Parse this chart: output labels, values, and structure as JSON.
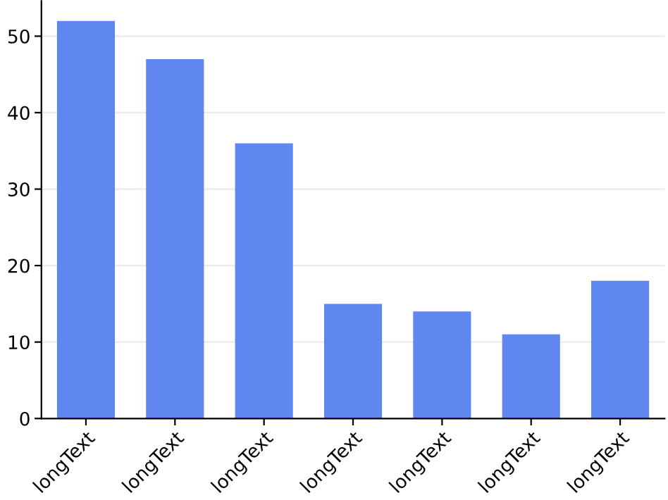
{
  "chart_data": {
    "type": "bar",
    "categories": [
      "longText",
      "longText",
      "longText",
      "longText",
      "longText",
      "longText",
      "longText"
    ],
    "values": [
      52,
      47,
      36,
      15,
      14,
      11,
      18
    ],
    "color": "#6086f0",
    "ylim": [
      0,
      54.6
    ],
    "yticks": [
      0,
      10,
      20,
      30,
      40,
      50
    ],
    "grid": "y"
  }
}
